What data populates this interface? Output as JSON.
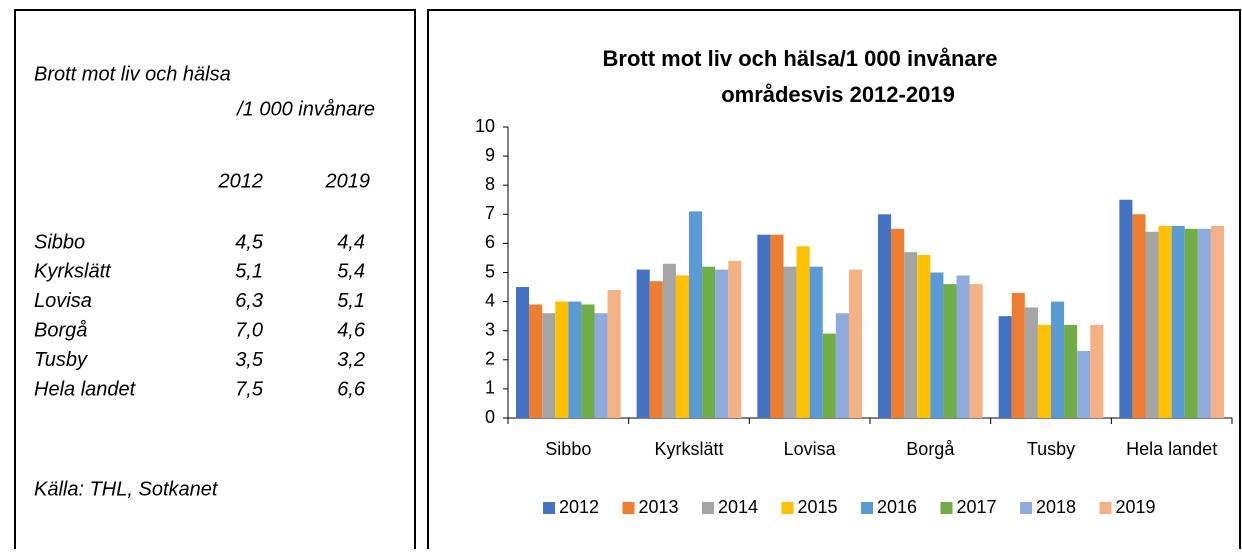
{
  "panel": {
    "title_line1": "Brott mot liv och hälsa",
    "title_line2": "/1 000 invånare",
    "header": [
      "2012",
      "2019"
    ],
    "rows": [
      [
        "Sibbo",
        "4,5",
        "4,4"
      ],
      [
        "Kyrkslätt",
        "5,1",
        "5,4"
      ],
      [
        "Lovisa",
        "6,3",
        "5,1"
      ],
      [
        "Borgå",
        "7,0",
        "4,6"
      ],
      [
        "Tusby",
        "3,5",
        "3,2"
      ],
      [
        "Hela landet",
        "7,5",
        "6,6"
      ]
    ],
    "source": "Källa: THL, Sotkanet"
  },
  "chart_data": {
    "type": "bar",
    "title": [
      "Brott mot liv och hälsa/1 000 invånare",
      "områdesvis 2012-2019"
    ],
    "categories": [
      "Sibbo",
      "Kyrkslätt",
      "Lovisa",
      "Borgå",
      "Tusby",
      "Hela landet"
    ],
    "series": [
      {
        "name": "2012",
        "color": "#4472c4",
        "values": [
          4.5,
          5.1,
          6.3,
          7.0,
          3.5,
          7.5
        ]
      },
      {
        "name": "2013",
        "color": "#ed7d31",
        "values": [
          3.9,
          4.7,
          6.3,
          6.5,
          4.3,
          7.0
        ]
      },
      {
        "name": "2014",
        "color": "#a5a5a5",
        "values": [
          3.6,
          5.3,
          5.2,
          5.7,
          3.8,
          6.4
        ]
      },
      {
        "name": "2015",
        "color": "#ffc000",
        "values": [
          4.0,
          4.9,
          5.9,
          5.6,
          3.2,
          6.6
        ]
      },
      {
        "name": "2016",
        "color": "#5b9bd5",
        "values": [
          4.0,
          7.1,
          5.2,
          5.0,
          4.0,
          6.6
        ]
      },
      {
        "name": "2017",
        "color": "#70ad47",
        "values": [
          3.9,
          5.2,
          2.9,
          4.6,
          3.2,
          6.5
        ]
      },
      {
        "name": "2018",
        "color": "#8faadc",
        "values": [
          3.6,
          5.1,
          3.6,
          4.9,
          2.3,
          6.5
        ]
      },
      {
        "name": "2019",
        "color": "#f4b183",
        "values": [
          4.4,
          5.4,
          5.1,
          4.6,
          3.2,
          6.6
        ]
      }
    ],
    "ylim": [
      0,
      10
    ],
    "yticks": [
      0,
      1,
      2,
      3,
      4,
      5,
      6,
      7,
      8,
      9,
      10
    ],
    "grid": false,
    "legend": "bottom"
  }
}
